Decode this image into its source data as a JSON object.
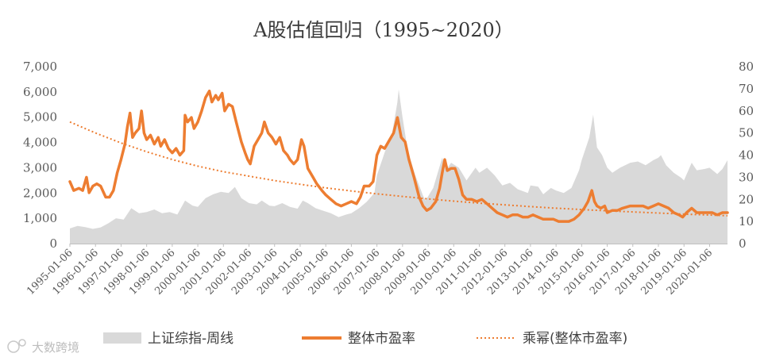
{
  "chart_data": {
    "type": "area",
    "title": "A股估值回归（1995~2020）",
    "x_dates": [
      "1995-01-06",
      "1996-01-06",
      "1997-01-06",
      "1998-01-06",
      "1999-01-06",
      "2000-01-06",
      "2001-01-06",
      "2002-01-06",
      "2003-01-06",
      "2004-01-06",
      "2005-01-06",
      "2006-01-06",
      "2007-01-06",
      "2008-01-06",
      "2009-01-06",
      "2010-01-06",
      "2011-01-06",
      "2012-01-06",
      "2013-01-06",
      "2014-01-06",
      "2015-01-06",
      "2016-01-06",
      "2017-01-06",
      "2018-01-06",
      "2019-01-06",
      "2020-01-06"
    ],
    "x_range": [
      1995.0,
      2020.7
    ],
    "y_left": {
      "ticks": [
        "0",
        "1,000",
        "2,000",
        "3,000",
        "4,000",
        "5,000",
        "6,000",
        "7,000"
      ],
      "range": [
        0,
        7000
      ]
    },
    "y_right": {
      "ticks": [
        "0",
        "10",
        "20",
        "30",
        "40",
        "50",
        "60",
        "70",
        "80"
      ],
      "range": [
        0,
        80
      ]
    },
    "series": [
      {
        "name": "上证综指-周线",
        "kind": "area",
        "axis": "left",
        "color": "#d9d9d9",
        "points": [
          [
            1995.0,
            600
          ],
          [
            1995.3,
            700
          ],
          [
            1995.6,
            650
          ],
          [
            1995.9,
            580
          ],
          [
            1996.2,
            640
          ],
          [
            1996.5,
            800
          ],
          [
            1996.8,
            1000
          ],
          [
            1997.1,
            950
          ],
          [
            1997.4,
            1400
          ],
          [
            1997.7,
            1200
          ],
          [
            1998.0,
            1250
          ],
          [
            1998.3,
            1350
          ],
          [
            1998.6,
            1200
          ],
          [
            1998.9,
            1250
          ],
          [
            1999.2,
            1150
          ],
          [
            1999.5,
            1700
          ],
          [
            1999.8,
            1500
          ],
          [
            2000.0,
            1450
          ],
          [
            2000.3,
            1800
          ],
          [
            2000.6,
            1950
          ],
          [
            2000.9,
            2050
          ],
          [
            2001.2,
            2000
          ],
          [
            2001.45,
            2240
          ],
          [
            2001.7,
            1800
          ],
          [
            2002.0,
            1600
          ],
          [
            2002.3,
            1550
          ],
          [
            2002.5,
            1700
          ],
          [
            2002.8,
            1500
          ],
          [
            2003.0,
            1480
          ],
          [
            2003.3,
            1600
          ],
          [
            2003.6,
            1450
          ],
          [
            2003.9,
            1380
          ],
          [
            2004.1,
            1700
          ],
          [
            2004.3,
            1600
          ],
          [
            2004.6,
            1400
          ],
          [
            2004.9,
            1300
          ],
          [
            2005.2,
            1200
          ],
          [
            2005.5,
            1050
          ],
          [
            2005.8,
            1150
          ],
          [
            2006.0,
            1200
          ],
          [
            2006.3,
            1400
          ],
          [
            2006.6,
            1650
          ],
          [
            2006.9,
            2000
          ],
          [
            2007.0,
            2700
          ],
          [
            2007.3,
            3600
          ],
          [
            2007.6,
            4400
          ],
          [
            2007.8,
            5600
          ],
          [
            2007.85,
            6100
          ],
          [
            2008.0,
            5000
          ],
          [
            2008.2,
            3700
          ],
          [
            2008.5,
            2700
          ],
          [
            2008.8,
            1900
          ],
          [
            2008.9,
            1700
          ],
          [
            2009.2,
            2200
          ],
          [
            2009.55,
            3400
          ],
          [
            2009.7,
            2900
          ],
          [
            2009.9,
            3200
          ],
          [
            2010.2,
            3000
          ],
          [
            2010.5,
            2500
          ],
          [
            2010.85,
            3000
          ],
          [
            2011.0,
            2800
          ],
          [
            2011.3,
            3000
          ],
          [
            2011.6,
            2700
          ],
          [
            2011.9,
            2300
          ],
          [
            2012.2,
            2400
          ],
          [
            2012.5,
            2150
          ],
          [
            2012.9,
            2000
          ],
          [
            2013.0,
            2300
          ],
          [
            2013.3,
            2250
          ],
          [
            2013.5,
            1950
          ],
          [
            2013.8,
            2200
          ],
          [
            2014.0,
            2100
          ],
          [
            2014.3,
            2000
          ],
          [
            2014.6,
            2200
          ],
          [
            2014.9,
            2900
          ],
          [
            2015.0,
            3300
          ],
          [
            2015.3,
            4200
          ],
          [
            2015.45,
            5100
          ],
          [
            2015.6,
            3800
          ],
          [
            2015.8,
            3500
          ],
          [
            2016.0,
            3000
          ],
          [
            2016.2,
            2800
          ],
          [
            2016.5,
            3000
          ],
          [
            2016.9,
            3200
          ],
          [
            2017.2,
            3250
          ],
          [
            2017.5,
            3100
          ],
          [
            2017.8,
            3300
          ],
          [
            2018.0,
            3400
          ],
          [
            2018.1,
            3500
          ],
          [
            2018.3,
            3100
          ],
          [
            2018.6,
            2800
          ],
          [
            2018.9,
            2600
          ],
          [
            2019.0,
            2500
          ],
          [
            2019.3,
            3200
          ],
          [
            2019.5,
            2900
          ],
          [
            2019.8,
            2950
          ],
          [
            2020.0,
            3000
          ],
          [
            2020.3,
            2750
          ],
          [
            2020.5,
            2950
          ],
          [
            2020.7,
            3300
          ]
        ]
      },
      {
        "name": "整体市盈率",
        "kind": "line",
        "axis": "right",
        "color": "#ed7d31",
        "points": [
          [
            1995.0,
            28
          ],
          [
            1995.15,
            24
          ],
          [
            1995.35,
            25
          ],
          [
            1995.5,
            24
          ],
          [
            1995.65,
            30
          ],
          [
            1995.75,
            23
          ],
          [
            1995.9,
            26
          ],
          [
            1996.05,
            27
          ],
          [
            1996.2,
            26
          ],
          [
            1996.4,
            21
          ],
          [
            1996.55,
            21
          ],
          [
            1996.7,
            24
          ],
          [
            1996.85,
            32
          ],
          [
            1997.0,
            38
          ],
          [
            1997.15,
            45
          ],
          [
            1997.25,
            53
          ],
          [
            1997.35,
            59
          ],
          [
            1997.45,
            48
          ],
          [
            1997.55,
            50
          ],
          [
            1997.7,
            52
          ],
          [
            1997.8,
            60
          ],
          [
            1997.9,
            50
          ],
          [
            1998.0,
            47
          ],
          [
            1998.15,
            49
          ],
          [
            1998.3,
            45
          ],
          [
            1998.45,
            48
          ],
          [
            1998.55,
            44
          ],
          [
            1998.7,
            47
          ],
          [
            1998.85,
            43
          ],
          [
            1999.0,
            41
          ],
          [
            1999.15,
            43
          ],
          [
            1999.3,
            40
          ],
          [
            1999.45,
            42
          ],
          [
            1999.5,
            58
          ],
          [
            1999.6,
            55
          ],
          [
            1999.75,
            57
          ],
          [
            1999.85,
            52
          ],
          [
            2000.0,
            55
          ],
          [
            2000.15,
            60
          ],
          [
            2000.3,
            66
          ],
          [
            2000.45,
            69
          ],
          [
            2000.55,
            64
          ],
          [
            2000.7,
            67
          ],
          [
            2000.8,
            65
          ],
          [
            2000.95,
            68
          ],
          [
            2001.05,
            60
          ],
          [
            2001.2,
            63
          ],
          [
            2001.35,
            62
          ],
          [
            2001.5,
            55
          ],
          [
            2001.7,
            46
          ],
          [
            2001.85,
            41
          ],
          [
            2001.95,
            38
          ],
          [
            2002.05,
            36
          ],
          [
            2002.2,
            44
          ],
          [
            2002.35,
            47
          ],
          [
            2002.5,
            50
          ],
          [
            2002.6,
            55
          ],
          [
            2002.75,
            50
          ],
          [
            2002.9,
            48
          ],
          [
            2003.05,
            45
          ],
          [
            2003.2,
            48
          ],
          [
            2003.35,
            42
          ],
          [
            2003.5,
            40
          ],
          [
            2003.6,
            38
          ],
          [
            2003.75,
            36
          ],
          [
            2003.9,
            38
          ],
          [
            2004.05,
            47
          ],
          [
            2004.15,
            44
          ],
          [
            2004.3,
            34
          ],
          [
            2004.5,
            30
          ],
          [
            2004.65,
            27
          ],
          [
            2004.85,
            24
          ],
          [
            2005.0,
            22
          ],
          [
            2005.2,
            20
          ],
          [
            2005.4,
            18
          ],
          [
            2005.6,
            17
          ],
          [
            2005.8,
            18
          ],
          [
            2006.0,
            19
          ],
          [
            2006.2,
            18
          ],
          [
            2006.35,
            21
          ],
          [
            2006.5,
            26
          ],
          [
            2006.7,
            26
          ],
          [
            2006.85,
            28
          ],
          [
            2007.0,
            40
          ],
          [
            2007.15,
            44
          ],
          [
            2007.3,
            43
          ],
          [
            2007.5,
            47
          ],
          [
            2007.65,
            50
          ],
          [
            2007.8,
            57
          ],
          [
            2007.95,
            48
          ],
          [
            2008.1,
            46
          ],
          [
            2008.25,
            38
          ],
          [
            2008.45,
            30
          ],
          [
            2008.65,
            21
          ],
          [
            2008.8,
            17
          ],
          [
            2008.95,
            15
          ],
          [
            2009.1,
            16
          ],
          [
            2009.3,
            19
          ],
          [
            2009.45,
            25
          ],
          [
            2009.55,
            32
          ],
          [
            2009.65,
            38
          ],
          [
            2009.75,
            33
          ],
          [
            2009.9,
            34
          ],
          [
            2010.05,
            34
          ],
          [
            2010.2,
            29
          ],
          [
            2010.35,
            22
          ],
          [
            2010.5,
            20
          ],
          [
            2010.7,
            20
          ],
          [
            2010.9,
            19
          ],
          [
            2011.1,
            20
          ],
          [
            2011.3,
            18
          ],
          [
            2011.5,
            16
          ],
          [
            2011.7,
            14
          ],
          [
            2011.9,
            13
          ],
          [
            2012.1,
            12
          ],
          [
            2012.3,
            13
          ],
          [
            2012.5,
            13
          ],
          [
            2012.7,
            12
          ],
          [
            2012.9,
            12
          ],
          [
            2013.1,
            13
          ],
          [
            2013.3,
            12
          ],
          [
            2013.5,
            11
          ],
          [
            2013.7,
            11
          ],
          [
            2013.9,
            11
          ],
          [
            2014.1,
            10
          ],
          [
            2014.3,
            10
          ],
          [
            2014.5,
            10
          ],
          [
            2014.7,
            11
          ],
          [
            2014.9,
            13
          ],
          [
            2015.1,
            16
          ],
          [
            2015.25,
            19
          ],
          [
            2015.4,
            24
          ],
          [
            2015.5,
            19
          ],
          [
            2015.6,
            17
          ],
          [
            2015.75,
            16
          ],
          [
            2015.9,
            17
          ],
          [
            2016.0,
            14
          ],
          [
            2016.2,
            15
          ],
          [
            2016.4,
            15
          ],
          [
            2016.6,
            16
          ],
          [
            2016.9,
            17
          ],
          [
            2017.1,
            17
          ],
          [
            2017.4,
            17
          ],
          [
            2017.6,
            16
          ],
          [
            2017.8,
            17
          ],
          [
            2018.0,
            18
          ],
          [
            2018.2,
            17
          ],
          [
            2018.4,
            16
          ],
          [
            2018.6,
            14
          ],
          [
            2018.8,
            13
          ],
          [
            2018.95,
            12
          ],
          [
            2019.1,
            14
          ],
          [
            2019.3,
            16
          ],
          [
            2019.5,
            14
          ],
          [
            2019.7,
            14
          ],
          [
            2019.9,
            14
          ],
          [
            2020.1,
            14
          ],
          [
            2020.3,
            13
          ],
          [
            2020.5,
            14
          ],
          [
            2020.7,
            14
          ]
        ]
      },
      {
        "name": "乘幂(整体市盈率)",
        "kind": "trend",
        "axis": "right",
        "color": "#ed7d31",
        "points": [
          [
            1995.0,
            55
          ],
          [
            1996.0,
            50
          ],
          [
            1997.0,
            45.5
          ],
          [
            1998.0,
            41.5
          ],
          [
            1999.0,
            38
          ],
          [
            2000.0,
            35
          ],
          [
            2001.0,
            32.5
          ],
          [
            2002.0,
            30.5
          ],
          [
            2003.0,
            28.5
          ],
          [
            2004.0,
            26.8
          ],
          [
            2005.0,
            25.2
          ],
          [
            2006.0,
            23.8
          ],
          [
            2007.0,
            22.5
          ],
          [
            2008.0,
            21.3
          ],
          [
            2009.0,
            20.2
          ],
          [
            2010.0,
            19.2
          ],
          [
            2011.0,
            18.3
          ],
          [
            2012.0,
            17.5
          ],
          [
            2013.0,
            16.7
          ],
          [
            2014.0,
            16.0
          ],
          [
            2015.0,
            15.4
          ],
          [
            2016.0,
            14.8
          ],
          [
            2017.0,
            14.3
          ],
          [
            2018.0,
            13.8
          ],
          [
            2019.0,
            13.3
          ],
          [
            2020.0,
            12.9
          ],
          [
            2020.7,
            12.6
          ]
        ]
      }
    ],
    "legend_position": "bottom",
    "grid": false
  },
  "legend": {
    "area_label": "上证综指-周线",
    "line_label": "整体市盈率",
    "trend_label": "乘幂(整体市盈率)"
  },
  "watermark": "大数跨境"
}
